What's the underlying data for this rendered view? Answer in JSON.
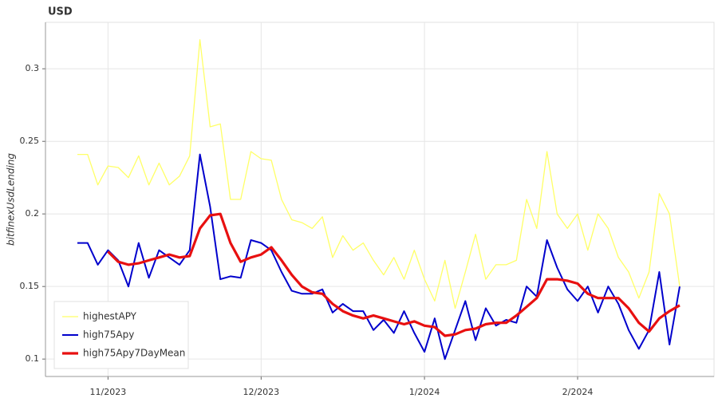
{
  "chart_data": {
    "type": "line",
    "title": "USD",
    "y_label": "bitfinexUsdLending",
    "categories": [
      null,
      null,
      null,
      "11/2023",
      null,
      null,
      null,
      null,
      null,
      null,
      null,
      null,
      null,
      null,
      null,
      null,
      null,
      null,
      "12/2023",
      null,
      null,
      null,
      null,
      null,
      null,
      null,
      null,
      null,
      null,
      null,
      null,
      null,
      null,
      null,
      "1/2024",
      null,
      null,
      null,
      null,
      null,
      null,
      null,
      null,
      null,
      null,
      null,
      null,
      null,
      null,
      "2/2024",
      null,
      null,
      null,
      null,
      null,
      null,
      null,
      null,
      null,
      null
    ],
    "series": [
      {
        "name": "highestAPY",
        "color": "#ffff66",
        "width": 1.3,
        "values": [
          0.241,
          0.241,
          0.22,
          0.233,
          0.232,
          0.225,
          0.24,
          0.22,
          0.235,
          0.22,
          0.226,
          0.24,
          0.32,
          0.26,
          0.262,
          0.21,
          0.21,
          0.243,
          0.238,
          0.237,
          0.21,
          0.196,
          0.194,
          0.19,
          0.198,
          0.17,
          0.185,
          0.175,
          0.18,
          0.168,
          0.158,
          0.17,
          0.155,
          0.175,
          0.155,
          0.14,
          0.168,
          0.135,
          0.16,
          0.186,
          0.155,
          0.165,
          0.165,
          0.168,
          0.21,
          0.19,
          0.243,
          0.2,
          0.19,
          0.2,
          0.175,
          0.2,
          0.19,
          0.17,
          0.16,
          0.142,
          0.16,
          0.214,
          0.2,
          0.15
        ]
      },
      {
        "name": "high75Apy",
        "color": "#0000cc",
        "width": 2,
        "values": [
          0.18,
          0.18,
          0.165,
          0.175,
          0.168,
          0.15,
          0.18,
          0.156,
          0.175,
          0.17,
          0.165,
          0.175,
          0.241,
          0.205,
          0.155,
          0.157,
          0.156,
          0.182,
          0.18,
          0.175,
          0.16,
          0.147,
          0.145,
          0.145,
          0.148,
          0.132,
          0.138,
          0.133,
          0.133,
          0.12,
          0.127,
          0.118,
          0.133,
          0.118,
          0.105,
          0.128,
          0.1,
          0.12,
          0.14,
          0.113,
          0.135,
          0.123,
          0.127,
          0.125,
          0.15,
          0.143,
          0.182,
          0.163,
          0.148,
          0.14,
          0.15,
          0.132,
          0.15,
          0.138,
          0.12,
          0.107,
          0.12,
          0.16,
          0.11,
          0.15
        ]
      },
      {
        "name": "high75Apy7DayMean",
        "color": "#e81010",
        "width": 3.2,
        "values": [
          null,
          null,
          null,
          0.174,
          0.167,
          0.165,
          0.166,
          0.168,
          0.17,
          0.172,
          0.17,
          0.171,
          0.19,
          0.199,
          0.2,
          0.18,
          0.167,
          0.17,
          0.172,
          0.177,
          0.168,
          0.158,
          0.15,
          0.146,
          0.145,
          0.138,
          0.133,
          0.13,
          0.128,
          0.13,
          0.128,
          0.126,
          0.124,
          0.126,
          0.123,
          0.122,
          0.116,
          0.117,
          0.12,
          0.121,
          0.124,
          0.125,
          0.125,
          0.13,
          0.136,
          0.142,
          0.155,
          0.155,
          0.154,
          0.152,
          0.145,
          0.142,
          0.142,
          0.142,
          0.135,
          0.125,
          0.119,
          0.128,
          0.133,
          0.137
        ]
      }
    ],
    "ylim": [
      0.088,
      0.332
    ],
    "yticks": [
      0.1,
      0.15,
      0.2,
      0.25,
      0.3
    ],
    "grid": true,
    "legend": "bottom-left"
  }
}
